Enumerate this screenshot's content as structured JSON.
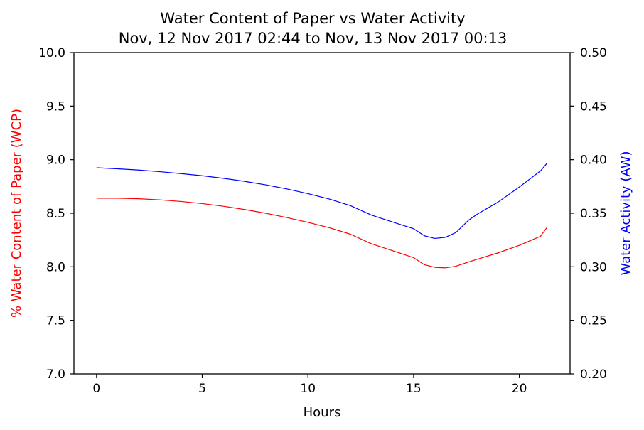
{
  "chart_data": {
    "type": "line",
    "title": "Water Content of Paper vs Water Activity",
    "subtitle": "Nov, 12 Nov 2017 02:44 to Nov, 13 Nov 2017 00:13",
    "xlabel": "Hours",
    "ylabel_left": "% Water Content of Paper (WCP)",
    "ylabel_right": "Water Activity (AW)",
    "xlim": [
      -1.07,
      22.4
    ],
    "ylim_left": [
      7.0,
      10.0
    ],
    "ylim_right": [
      0.2,
      0.5
    ],
    "x_ticks": [
      "0",
      "5",
      "10",
      "15",
      "20"
    ],
    "y_left_ticks": [
      "7.0",
      "7.5",
      "8.0",
      "8.5",
      "9.0",
      "9.5",
      "10.0"
    ],
    "y_right_ticks": [
      "0.20",
      "0.25",
      "0.30",
      "0.35",
      "0.40",
      "0.45",
      "0.50"
    ],
    "grid": false,
    "series": [
      {
        "name": "% Water Content of Paper (WCP)",
        "axis": "left",
        "color": "#ff0000",
        "x": [
          0,
          1,
          2,
          3,
          4,
          5,
          6,
          7,
          8,
          9,
          10,
          11,
          12,
          13,
          14,
          15,
          15.5,
          16,
          16.5,
          17,
          17.6,
          18,
          19,
          20,
          21,
          21.3
        ],
        "values": [
          8.64,
          8.64,
          8.635,
          8.625,
          8.61,
          8.59,
          8.565,
          8.535,
          8.5,
          8.46,
          8.415,
          8.365,
          8.305,
          8.215,
          8.15,
          8.085,
          8.02,
          7.995,
          7.99,
          8.005,
          8.045,
          8.07,
          8.13,
          8.2,
          8.285,
          8.365
        ]
      },
      {
        "name": "Water Activity (AW)",
        "axis": "right",
        "color": "#0000ff",
        "x": [
          0,
          1,
          2,
          3,
          4,
          5,
          6,
          7,
          8,
          9,
          10,
          11,
          12,
          13,
          14,
          15,
          15.5,
          16,
          16.5,
          17,
          17.6,
          18,
          19,
          20,
          21,
          21.3
        ],
        "values": [
          0.3925,
          0.3915,
          0.3903,
          0.3888,
          0.387,
          0.385,
          0.3826,
          0.3798,
          0.3765,
          0.3727,
          0.3683,
          0.3633,
          0.3572,
          0.3483,
          0.3418,
          0.3355,
          0.329,
          0.3265,
          0.3275,
          0.332,
          0.3435,
          0.349,
          0.3605,
          0.3745,
          0.3895,
          0.3965
        ]
      }
    ]
  }
}
